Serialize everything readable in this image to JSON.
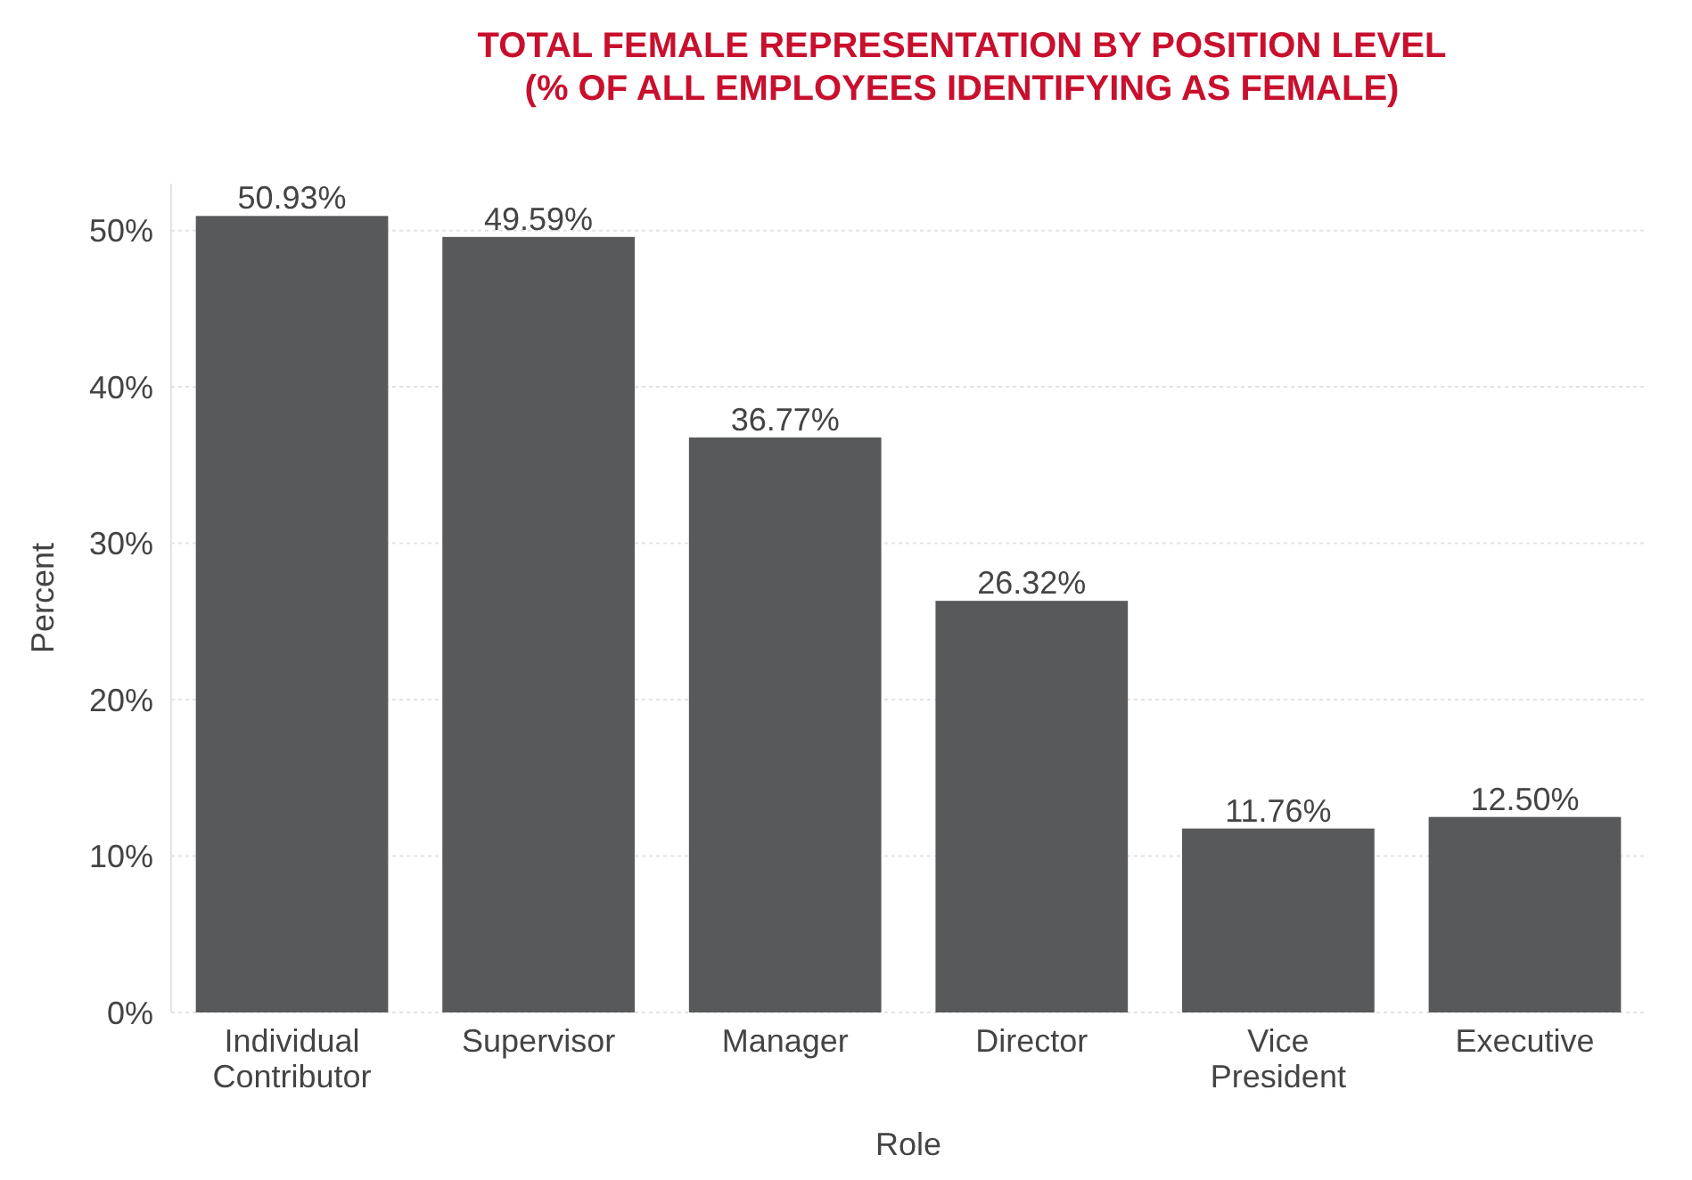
{
  "chart_data": {
    "type": "bar",
    "title": "TOTAL FEMALE REPRESENTATION BY POSITION LEVEL\n(% OF ALL EMPLOYEES IDENTIFYING AS FEMALE)",
    "categories": [
      "Individual Contributor",
      "Supervisor",
      "Manager",
      "Director",
      "Vice President",
      "Executive"
    ],
    "values": [
      50.93,
      49.59,
      36.77,
      26.32,
      11.76,
      12.5
    ],
    "value_labels": [
      "50.93%",
      "49.59%",
      "36.77%",
      "26.32%",
      "11.76%",
      "12.50%"
    ],
    "color": "#58595b",
    "xlabel": "Role",
    "ylabel": "Percent",
    "ylim": [
      0,
      53
    ],
    "yticks": [
      {
        "value": 0,
        "label": "0%"
      },
      {
        "value": 10,
        "label": "10%"
      },
      {
        "value": 20,
        "label": "20%"
      },
      {
        "value": 30,
        "label": "30%"
      },
      {
        "value": 40,
        "label": "40%"
      },
      {
        "value": 50,
        "label": "50%"
      }
    ],
    "grid": "y"
  }
}
